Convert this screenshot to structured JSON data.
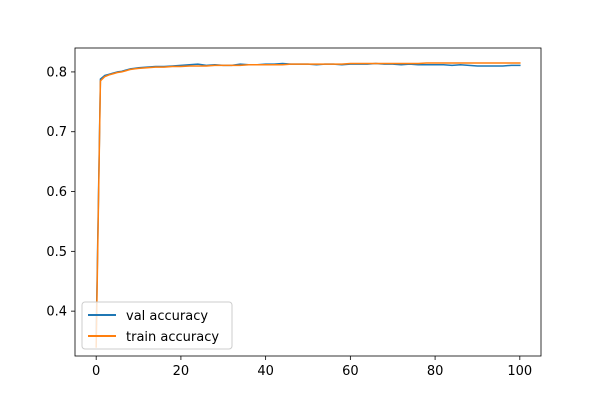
{
  "chart_data": {
    "type": "line",
    "title": "",
    "xlabel": "",
    "ylabel": "",
    "xlim": [
      -5,
      105
    ],
    "ylim": [
      0.325,
      0.84
    ],
    "xticks": [
      0,
      20,
      40,
      60,
      80,
      100
    ],
    "yticks": [
      0.4,
      0.5,
      0.6,
      0.7,
      0.8
    ],
    "xtick_labels": [
      "0",
      "20",
      "40",
      "60",
      "80",
      "100"
    ],
    "ytick_labels": [
      "0.4",
      "0.5",
      "0.6",
      "0.7",
      "0.8"
    ],
    "grid": false,
    "legend_position": "lower-left",
    "colors": {
      "val": "#1f77b4",
      "train": "#ff7f0e"
    },
    "series": [
      {
        "name": "val accuracy",
        "x": [
          0,
          1,
          2,
          3,
          4,
          5,
          6,
          7,
          8,
          9,
          10,
          12,
          14,
          16,
          18,
          20,
          22,
          24,
          26,
          28,
          30,
          32,
          34,
          36,
          38,
          40,
          42,
          44,
          46,
          48,
          50,
          52,
          54,
          56,
          58,
          60,
          62,
          64,
          66,
          68,
          70,
          72,
          74,
          76,
          78,
          80,
          82,
          84,
          86,
          88,
          90,
          92,
          94,
          96,
          98,
          100
        ],
        "y": [
          0.36,
          0.788,
          0.794,
          0.796,
          0.798,
          0.8,
          0.801,
          0.803,
          0.805,
          0.806,
          0.807,
          0.808,
          0.809,
          0.809,
          0.81,
          0.811,
          0.812,
          0.813,
          0.811,
          0.812,
          0.811,
          0.811,
          0.813,
          0.812,
          0.812,
          0.813,
          0.813,
          0.814,
          0.813,
          0.813,
          0.813,
          0.812,
          0.813,
          0.813,
          0.812,
          0.813,
          0.813,
          0.813,
          0.814,
          0.813,
          0.813,
          0.812,
          0.813,
          0.812,
          0.812,
          0.812,
          0.812,
          0.811,
          0.812,
          0.811,
          0.81,
          0.81,
          0.81,
          0.81,
          0.811,
          0.811
        ]
      },
      {
        "name": "train accuracy",
        "x": [
          0,
          1,
          2,
          3,
          4,
          5,
          6,
          7,
          8,
          9,
          10,
          12,
          14,
          16,
          18,
          20,
          22,
          24,
          26,
          28,
          30,
          32,
          34,
          36,
          38,
          40,
          42,
          44,
          46,
          48,
          50,
          52,
          54,
          56,
          58,
          60,
          62,
          64,
          66,
          68,
          70,
          72,
          74,
          76,
          78,
          80,
          82,
          84,
          86,
          88,
          90,
          92,
          94,
          96,
          98,
          100
        ],
        "y": [
          0.34,
          0.785,
          0.792,
          0.795,
          0.797,
          0.799,
          0.8,
          0.802,
          0.804,
          0.805,
          0.806,
          0.807,
          0.808,
          0.808,
          0.809,
          0.809,
          0.81,
          0.81,
          0.81,
          0.811,
          0.811,
          0.811,
          0.811,
          0.812,
          0.812,
          0.812,
          0.812,
          0.812,
          0.813,
          0.813,
          0.813,
          0.813,
          0.813,
          0.813,
          0.813,
          0.814,
          0.814,
          0.814,
          0.814,
          0.814,
          0.814,
          0.814,
          0.814,
          0.814,
          0.815,
          0.815,
          0.815,
          0.815,
          0.815,
          0.815,
          0.815,
          0.815,
          0.815,
          0.815,
          0.815,
          0.815
        ]
      }
    ]
  }
}
